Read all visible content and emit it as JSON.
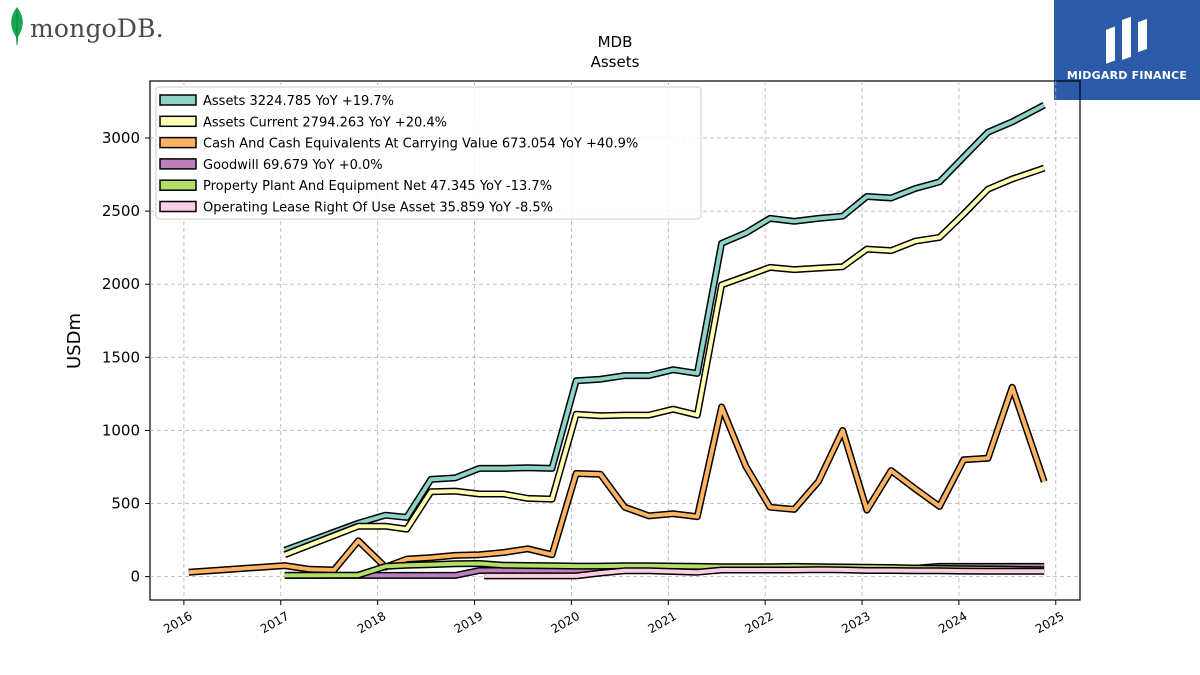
{
  "logos": {
    "left": "mongoDB.",
    "right": "MIDGARD FINANCE"
  },
  "colors": {
    "assets": "#8dd3c7",
    "assets_current": "#ffffb3",
    "cash": "#fdb462",
    "goodwill": "#bc80bd",
    "ppe": "#b3de69",
    "lease": "#fccde5",
    "brand_blue": "#2a5aa8"
  },
  "chart_data": {
    "type": "line",
    "title": "MDB",
    "subtitle": "Assets",
    "ylabel": "USDm",
    "xlabel": "",
    "xlim": [
      2015.65,
      2025.25
    ],
    "ylim": [
      -160,
      3390
    ],
    "x_ticks": [
      "2016",
      "2017",
      "2018",
      "2019",
      "2020",
      "2021",
      "2022",
      "2023",
      "2024",
      "2025"
    ],
    "y_ticks": [
      "0",
      "500",
      "1000",
      "1500",
      "2000",
      "2500",
      "3000"
    ],
    "grid": true,
    "legend_position": "top-left",
    "series": [
      {
        "name": "Assets",
        "legend": "Assets  3224.785 YoY +19.7%",
        "color": "#8dd3c7",
        "x": [
          2017.04,
          2017.8,
          2018.08,
          2018.3,
          2018.55,
          2018.8,
          2019.05,
          2019.3,
          2019.55,
          2019.8,
          2020.05,
          2020.3,
          2020.55,
          2020.8,
          2021.05,
          2021.3,
          2021.55,
          2021.8,
          2022.05,
          2022.3,
          2022.55,
          2022.8,
          2023.05,
          2023.3,
          2023.55,
          2023.8,
          2024.05,
          2024.3,
          2024.55,
          2024.88
        ],
        "y": [
          180,
          365,
          420,
          405,
          665,
          675,
          740,
          740,
          745,
          740,
          1340,
          1350,
          1375,
          1375,
          1415,
          1390,
          2280,
          2350,
          2450,
          2430,
          2450,
          2465,
          2600,
          2590,
          2655,
          2700,
          2870,
          3040,
          3110,
          3225
        ]
      },
      {
        "name": "Assets Current",
        "legend": "Assets Current  2794.263 YoY +20.4%",
        "color": "#ffffb3",
        "x": [
          2017.04,
          2017.8,
          2018.08,
          2018.3,
          2018.55,
          2018.8,
          2019.05,
          2019.3,
          2019.55,
          2019.8,
          2020.05,
          2020.3,
          2020.55,
          2020.8,
          2021.05,
          2021.3,
          2021.55,
          2021.8,
          2022.05,
          2022.3,
          2022.55,
          2022.8,
          2023.05,
          2023.3,
          2023.55,
          2023.8,
          2024.05,
          2024.3,
          2024.55,
          2024.88
        ],
        "y": [
          150,
          345,
          345,
          325,
          580,
          585,
          565,
          565,
          535,
          530,
          1110,
          1100,
          1105,
          1105,
          1145,
          1105,
          1995,
          2055,
          2115,
          2100,
          2110,
          2120,
          2240,
          2230,
          2295,
          2320,
          2480,
          2650,
          2720,
          2794
        ]
      },
      {
        "name": "Cash And Cash Equivalents At Carrying Value",
        "legend": "Cash And Cash Equivalents At Carrying Value  673.054 YoY +40.9%",
        "color": "#fdb462",
        "x": [
          2016.05,
          2017.04,
          2017.3,
          2017.55,
          2017.8,
          2018.08,
          2018.3,
          2018.55,
          2018.8,
          2019.05,
          2019.3,
          2019.55,
          2019.8,
          2020.05,
          2020.3,
          2020.55,
          2020.8,
          2021.05,
          2021.3,
          2021.55,
          2021.8,
          2022.05,
          2022.3,
          2022.55,
          2022.8,
          2023.05,
          2023.3,
          2023.55,
          2023.8,
          2024.05,
          2024.3,
          2024.55,
          2024.88
        ],
        "y": [
          30,
          75,
          50,
          45,
          245,
          65,
          120,
          130,
          145,
          150,
          165,
          190,
          150,
          705,
          700,
          475,
          415,
          430,
          410,
          1160,
          755,
          475,
          460,
          650,
          1000,
          455,
          725,
          600,
          480,
          800,
          810,
          1295,
          650
        ]
      },
      {
        "name": "Goodwill",
        "legend": "Goodwill  69.679 YoY +0.0%",
        "color": "#bc80bd",
        "x": [
          2017.04,
          2018.0,
          2018.08,
          2018.3,
          2018.55,
          2018.8,
          2019.05,
          2019.3,
          2019.55,
          2019.8,
          2020.05,
          2020.3,
          2020.55,
          2020.8,
          2021.05,
          2021.3,
          2021.55,
          2021.8,
          2022.05,
          2022.3,
          2022.55,
          2022.8,
          2023.05,
          2023.3,
          2023.55,
          2023.8,
          2024.05,
          2024.3,
          2024.55,
          2024.88
        ],
        "y": [
          8,
          8,
          8,
          8,
          8,
          8,
          42,
          42,
          42,
          42,
          42,
          42,
          42,
          42,
          42,
          42,
          57,
          57,
          57,
          57,
          57,
          57,
          57,
          57,
          57,
          70,
          70,
          70,
          70,
          70
        ]
      },
      {
        "name": "Property Plant And Equipment Net",
        "legend": "Property Plant And Equipment Net  47.345 YoY -13.7%",
        "color": "#b3de69",
        "x": [
          2017.04,
          2017.8,
          2018.08,
          2018.3,
          2018.55,
          2018.8,
          2019.05,
          2019.3,
          2019.55,
          2019.8,
          2020.05,
          2020.3,
          2020.55,
          2020.8,
          2021.05,
          2021.3,
          2021.55,
          2021.8,
          2022.05,
          2022.3,
          2022.55,
          2022.8,
          2023.05,
          2023.3,
          2023.55,
          2023.8,
          2024.05,
          2024.3,
          2024.55,
          2024.88
        ],
        "y": [
          8,
          10,
          70,
          78,
          82,
          88,
          90,
          78,
          76,
          74,
          72,
          72,
          74,
          74,
          72,
          70,
          68,
          68,
          68,
          70,
          68,
          66,
          64,
          62,
          58,
          56,
          54,
          52,
          50,
          47
        ]
      },
      {
        "name": "Operating Lease Right Of Use Asset",
        "legend": "Operating Lease Right Of Use Asset  35.859 YoY -8.5%",
        "color": "#fccde5",
        "x": [
          2019.1,
          2019.3,
          2019.55,
          2019.8,
          2020.05,
          2020.3,
          2020.55,
          2020.8,
          2021.05,
          2021.3,
          2021.55,
          2021.8,
          2022.05,
          2022.3,
          2022.55,
          2022.8,
          2023.05,
          2023.3,
          2023.55,
          2023.8,
          2024.05,
          2024.3,
          2024.55,
          2024.88
        ],
        "y": [
          5,
          5,
          5,
          5,
          5,
          25,
          40,
          40,
          35,
          30,
          45,
          45,
          45,
          45,
          48,
          46,
          42,
          42,
          40,
          40,
          38,
          36,
          36,
          36
        ]
      }
    ]
  }
}
